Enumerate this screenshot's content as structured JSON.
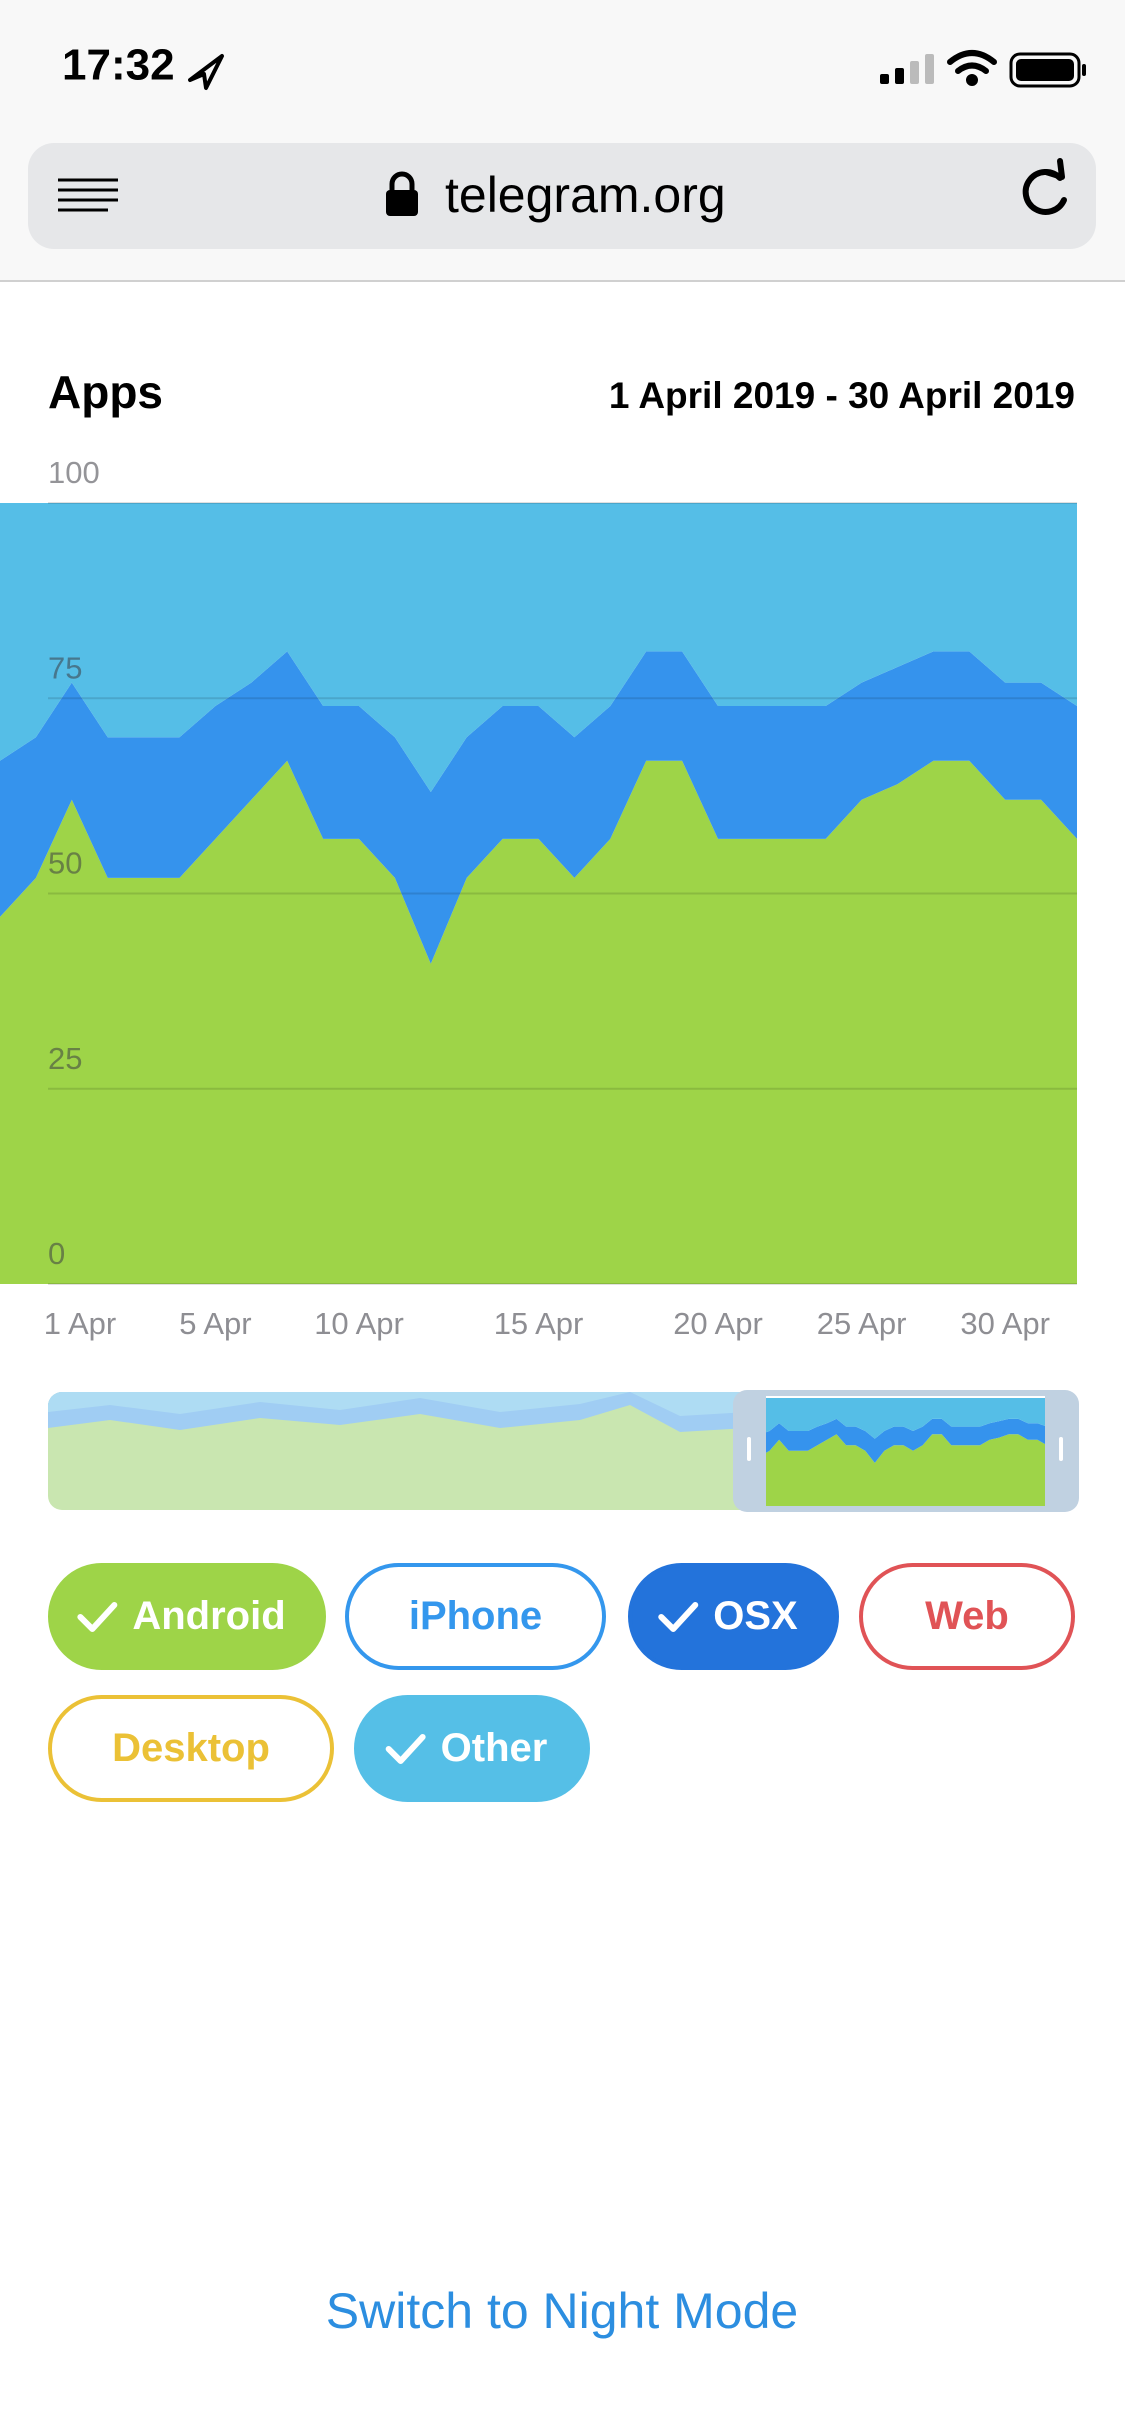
{
  "status_bar": {
    "time": "17:32"
  },
  "browser": {
    "url": "telegram.org"
  },
  "chart_data": {
    "type": "stacked_area",
    "title": "Apps",
    "subtitle": "1 April 2019 - 30 April 2019",
    "categories": [
      null,
      null,
      "1 Apr",
      null,
      null,
      null,
      "5 Apr",
      null,
      null,
      null,
      "10 Apr",
      null,
      null,
      null,
      null,
      "15 Apr",
      null,
      null,
      null,
      null,
      "20 Apr",
      null,
      null,
      null,
      "25 Apr",
      null,
      null,
      null,
      "30 Apr",
      null,
      null
    ],
    "series": [
      {
        "name": "Android",
        "color": "#9ed448",
        "values": [
          47,
          52,
          62,
          52,
          52,
          52,
          57,
          62,
          67,
          57,
          57,
          52,
          41,
          52,
          57,
          57,
          52,
          57,
          67,
          67,
          57,
          57,
          57,
          57,
          62,
          64,
          67,
          67,
          62,
          62,
          57
        ]
      },
      {
        "name": "OSX",
        "color": "#3593ed",
        "values": [
          20,
          18,
          15,
          18,
          18,
          18,
          17,
          15,
          14,
          17,
          17,
          18,
          22,
          18,
          17,
          17,
          18,
          17,
          14,
          14,
          17,
          17,
          17,
          17,
          15,
          15,
          14,
          14,
          15,
          15,
          17
        ]
      },
      {
        "name": "Other",
        "color": "#55bee7",
        "values": [
          33,
          30,
          23,
          30,
          30,
          30,
          26,
          23,
          19,
          26,
          26,
          30,
          37,
          30,
          26,
          26,
          30,
          26,
          19,
          19,
          26,
          26,
          26,
          26,
          23,
          21,
          19,
          19,
          23,
          23,
          26
        ]
      }
    ],
    "ylim": [
      0,
      100
    ],
    "yticks": [
      0,
      25,
      50,
      75,
      100
    ],
    "grid": true,
    "toggles": [
      {
        "name": "Android",
        "color": "#9ed448",
        "checked": true
      },
      {
        "name": "iPhone",
        "color": "#3497ed",
        "checked": false
      },
      {
        "name": "OSX",
        "color": "#2373db",
        "checked": true
      },
      {
        "name": "Web",
        "color": "#e05356",
        "checked": false
      },
      {
        "name": "Desktop",
        "color": "#ebc136",
        "checked": false
      },
      {
        "name": "Other",
        "color": "#55bfe7",
        "checked": true
      }
    ]
  },
  "footer": {
    "link": "Switch to Night Mode"
  }
}
